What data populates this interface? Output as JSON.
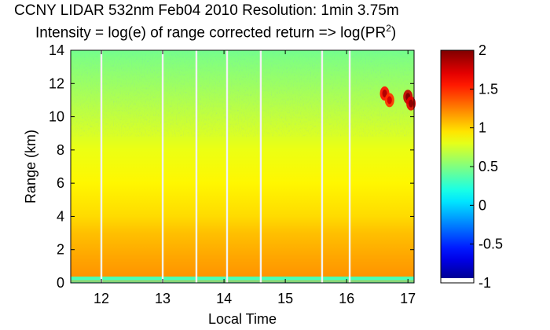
{
  "chart_data": {
    "type": "heatmap",
    "title": "CCNY LIDAR 532nm Feb04 2010 Resolution: 1min 3.75m",
    "subtitle_main": "Intensity = log(e) of range corrected return => log(PR",
    "subtitle_sup": "2",
    "subtitle_end": ")",
    "xlabel": "Local Time",
    "ylabel": "Range (km)",
    "xlim": [
      11.5,
      17.1
    ],
    "ylim": [
      0,
      14
    ],
    "xticks": [
      12,
      13,
      14,
      15,
      16,
      17
    ],
    "yticks": [
      0,
      2,
      4,
      6,
      8,
      10,
      12,
      14
    ],
    "colorbar": {
      "min": -1,
      "max": 2,
      "ticks": [
        -1,
        -0.5,
        0,
        0.5,
        1,
        1.5,
        2
      ],
      "colormap": "jet"
    },
    "intensity_profile_by_range_km": [
      {
        "range": 0.0,
        "value": 0.3
      },
      {
        "range": 0.2,
        "value": 1.2
      },
      {
        "range": 0.6,
        "value": 1.18
      },
      {
        "range": 1.5,
        "value": 1.14
      },
      {
        "range": 3.0,
        "value": 1.06
      },
      {
        "range": 4.0,
        "value": 0.98
      },
      {
        "range": 6.0,
        "value": 0.9
      },
      {
        "range": 8.0,
        "value": 0.82
      },
      {
        "range": 10.0,
        "value": 0.7
      },
      {
        "range": 12.0,
        "value": 0.58
      },
      {
        "range": 13.5,
        "value": 0.5
      },
      {
        "range": 14.0,
        "value": 0.46
      }
    ],
    "data_gaps_local_time": [
      12.0,
      13.0,
      13.55,
      14.05,
      14.6,
      15.6,
      16.05
    ],
    "cloud_features": [
      {
        "time": 16.62,
        "range_km": 11.4,
        "value": 1.6
      },
      {
        "time": 16.7,
        "range_km": 11.0,
        "value": 1.5
      },
      {
        "time": 17.0,
        "range_km": 11.2,
        "value": 1.8
      },
      {
        "time": 17.05,
        "range_km": 10.8,
        "value": 1.7
      }
    ]
  }
}
